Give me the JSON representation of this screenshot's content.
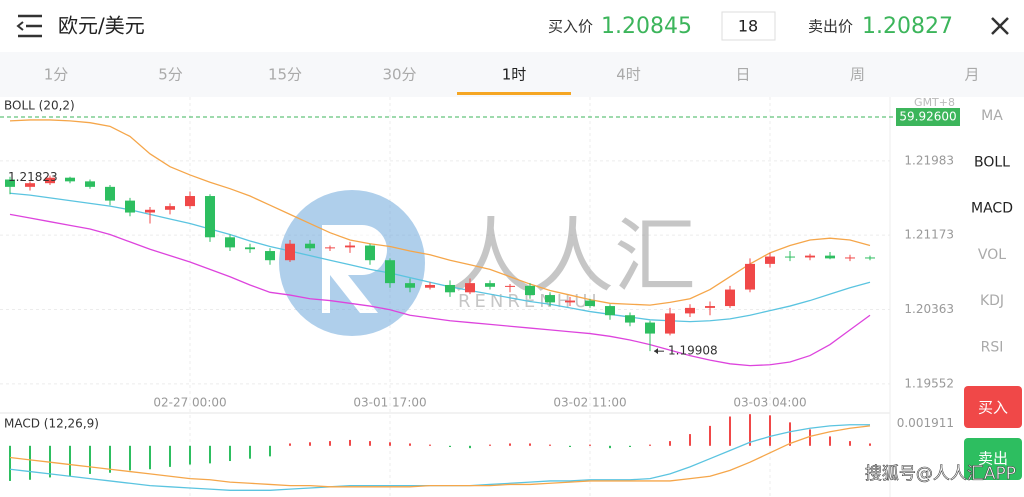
{
  "header": {
    "title": "欧元/美元",
    "buy_label": "买入价",
    "buy_price": 1.20845,
    "quantity": 18,
    "sell_label": "卖出价",
    "sell_price": 1.20827
  },
  "tabs": [
    "1分",
    "5分",
    "15分",
    "30分",
    "1时",
    "4时",
    "日",
    "周",
    "月"
  ],
  "active_tab": 4,
  "indicators": [
    "MA",
    "BOLL",
    "MACD",
    "VOL",
    "KDJ",
    "RSI"
  ],
  "active_indicators": [
    "BOLL",
    "MACD"
  ],
  "buttons": {
    "buy": "买入",
    "sell": "卖出"
  },
  "watermark": {
    "name": "人人汇",
    "latin": "RENRENHUI",
    "source": "搜狐号@人人汇APP"
  },
  "chart_data": [
    {
      "type": "candlestick",
      "title": "BOLL (20,2)",
      "price_tag": "59.92600",
      "timezone": "GMT+8",
      "categories": [
        null,
        null,
        null,
        null,
        null,
        null,
        null,
        null,
        null,
        "02-27 00:00",
        null,
        null,
        null,
        null,
        null,
        null,
        null,
        null,
        null,
        "03-01 17:00",
        null,
        null,
        null,
        null,
        null,
        null,
        null,
        null,
        null,
        "03-02 11:00",
        null,
        null,
        null,
        null,
        null,
        null,
        null,
        null,
        "03-03 04:00",
        null,
        null,
        null,
        null,
        null
      ],
      "open": [
        1.2178,
        1.217,
        1.2174,
        1.218,
        1.2176,
        1.217,
        1.2155,
        1.2142,
        1.2145,
        1.2149,
        1.216,
        1.2115,
        1.2104,
        1.21,
        1.209,
        1.2108,
        1.2103,
        1.2104,
        1.2106,
        1.209,
        1.2065,
        1.206,
        1.2063,
        1.2055,
        1.2065,
        1.2061,
        1.2062,
        1.2052,
        1.2044,
        1.2046,
        1.204,
        1.203,
        1.2022,
        1.201,
        1.2032,
        1.2038,
        1.204,
        1.2058,
        1.2086,
        1.2094,
        1.2093,
        1.2095,
        1.2092,
        1.2093
      ],
      "high": [
        1.2181,
        1.2176,
        1.21823,
        1.2181,
        1.2178,
        1.2172,
        1.2158,
        1.2148,
        1.2152,
        1.2165,
        1.2162,
        1.2118,
        1.2108,
        1.2103,
        1.2112,
        1.2112,
        1.2106,
        1.211,
        1.2108,
        1.2092,
        1.207,
        1.2066,
        1.2068,
        1.207,
        1.2068,
        1.2064,
        1.2065,
        1.2055,
        1.205,
        1.2048,
        1.2042,
        1.2033,
        1.2024,
        1.2038,
        1.2042,
        1.2045,
        1.2062,
        1.2092,
        1.2098,
        1.21,
        1.2097,
        1.2099,
        1.2096,
        1.2095
      ],
      "low": [
        1.2162,
        1.2166,
        1.2172,
        1.2174,
        1.2168,
        1.215,
        1.2138,
        1.213,
        1.214,
        1.2146,
        1.211,
        1.21,
        1.2098,
        1.2085,
        1.2088,
        1.21,
        1.21,
        1.2098,
        1.2085,
        1.206,
        1.2055,
        1.2058,
        1.205,
        1.2053,
        1.2058,
        1.2055,
        1.2048,
        1.204,
        1.204,
        1.2038,
        1.2025,
        1.2018,
        1.19908,
        1.2008,
        1.2028,
        1.203,
        1.2038,
        1.2055,
        1.2082,
        1.2089,
        1.209,
        1.2091,
        1.2089,
        1.209
      ],
      "close": [
        1.217,
        1.2174,
        1.218,
        1.2176,
        1.217,
        1.2155,
        1.2142,
        1.2145,
        1.2149,
        1.216,
        1.2115,
        1.2104,
        1.2102,
        1.209,
        1.2108,
        1.2103,
        1.2104,
        1.2106,
        1.209,
        1.2065,
        1.206,
        1.2063,
        1.2055,
        1.2065,
        1.2061,
        1.2062,
        1.2052,
        1.2044,
        1.2046,
        1.204,
        1.203,
        1.2022,
        1.201,
        1.2032,
        1.2038,
        1.204,
        1.2058,
        1.2086,
        1.2094,
        1.2093,
        1.2095,
        1.2092,
        1.2093,
        1.2092
      ],
      "upper": [
        1.2242,
        1.2243,
        1.2243,
        1.2242,
        1.224,
        1.2236,
        1.2225,
        1.2206,
        1.2192,
        1.2183,
        1.2175,
        1.2168,
        1.216,
        1.215,
        1.214,
        1.213,
        1.212,
        1.2112,
        1.2108,
        1.2105,
        1.21,
        1.2096,
        1.209,
        1.2085,
        1.208,
        1.2072,
        1.2064,
        1.2057,
        1.2052,
        1.2047,
        1.2043,
        1.2042,
        1.2041,
        1.2044,
        1.2048,
        1.2058,
        1.2072,
        1.2086,
        1.2098,
        1.2106,
        1.2112,
        1.2114,
        1.2112,
        1.2106
      ],
      "mid": [
        1.2163,
        1.2161,
        1.2158,
        1.2155,
        1.2152,
        1.2149,
        1.2145,
        1.214,
        1.2135,
        1.213,
        1.2124,
        1.2118,
        1.2111,
        1.2105,
        1.21,
        1.2095,
        1.209,
        1.2085,
        1.208,
        1.2076,
        1.2071,
        1.2066,
        1.2061,
        1.2057,
        1.2053,
        1.2049,
        1.2045,
        1.2042,
        1.2038,
        1.2034,
        1.2031,
        1.2028,
        1.2025,
        1.2024,
        1.2023,
        1.2024,
        1.2026,
        1.203,
        1.2035,
        1.204,
        1.2046,
        1.2053,
        1.206,
        1.2066
      ],
      "lower": [
        1.214,
        1.2136,
        1.2132,
        1.2128,
        1.2124,
        1.2118,
        1.211,
        1.2102,
        1.2095,
        1.2088,
        1.208,
        1.2072,
        1.2063,
        1.2055,
        1.2052,
        1.2048,
        1.2046,
        1.2043,
        1.204,
        1.2036,
        1.203,
        1.2027,
        1.2024,
        1.2022,
        1.202,
        1.2018,
        1.2016,
        1.2014,
        1.2012,
        1.201,
        1.2007,
        1.2003,
        1.1998,
        1.1992,
        1.1986,
        1.1981,
        1.1977,
        1.1975,
        1.1976,
        1.1979,
        1.1986,
        1.1998,
        1.2014,
        1.203
      ],
      "colors": {
        "up": "#f04848",
        "down": "#2dbe60",
        "upper": "#f5a64a",
        "mid": "#5bc4e0",
        "lower": "#dd44dd"
      },
      "ylim": [
        1.1943,
        1.2268
      ],
      "yticks": [
        1.21983,
        1.21173,
        1.20363,
        1.19552
      ],
      "grid": true
    },
    {
      "type": "macd",
      "title": "MACD (12,26,9)",
      "values": [
        -0.003,
        -0.0029,
        -0.0027,
        -0.0026,
        -0.0024,
        -0.0023,
        -0.0021,
        -0.002,
        -0.0018,
        -0.0016,
        -0.0015,
        -0.0013,
        -0.0011,
        -0.0009,
        0.0002,
        0.0003,
        0.0004,
        0.0005,
        0.0004,
        0.0003,
        0.0002,
        0.0001,
        -0.0001,
        -0.0002,
        0.0001,
        0.0002,
        0.0002,
        0.0001,
        -0.0001,
        0.0001,
        -0.0002,
        -0.0001,
        0.0001,
        0.0004,
        0.001,
        0.0017,
        0.0025,
        0.0027,
        0.0026,
        0.002,
        0.0014,
        0.0008,
        0.0004,
        0.0002
      ],
      "dif": [
        -0.002,
        -0.0022,
        -0.0024,
        -0.0026,
        -0.0028,
        -0.003,
        -0.0032,
        -0.0034,
        -0.0035,
        -0.0036,
        -0.0037,
        -0.0038,
        -0.0038,
        -0.0038,
        -0.0037,
        -0.0036,
        -0.0035,
        -0.0034,
        -0.0034,
        -0.0034,
        -0.0034,
        -0.0034,
        -0.0034,
        -0.0034,
        -0.0033,
        -0.0032,
        -0.0031,
        -0.003,
        -0.003,
        -0.0029,
        -0.0029,
        -0.0029,
        -0.0028,
        -0.0024,
        -0.0018,
        -0.0011,
        -0.0004,
        0.0003,
        0.0008,
        0.0012,
        0.0015,
        0.0017,
        0.0018,
        0.0018
      ],
      "dea": [
        -0.001,
        -0.0012,
        -0.0014,
        -0.0016,
        -0.0018,
        -0.002,
        -0.0022,
        -0.0024,
        -0.0026,
        -0.0028,
        -0.0029,
        -0.0031,
        -0.0032,
        -0.0033,
        -0.0034,
        -0.0034,
        -0.0035,
        -0.0035,
        -0.0035,
        -0.0035,
        -0.0035,
        -0.0034,
        -0.0034,
        -0.0034,
        -0.0034,
        -0.0033,
        -0.0033,
        -0.0032,
        -0.0031,
        -0.003,
        -0.003,
        -0.003,
        -0.003,
        -0.003,
        -0.0028,
        -0.0026,
        -0.0021,
        -0.0014,
        -0.0006,
        0.0002,
        0.0008,
        0.0012,
        0.0015,
        0.0017
      ],
      "colors": {
        "up": "#f04848",
        "down": "#2dbe60",
        "dif": "#5bc4e0",
        "dea": "#f5a64a"
      },
      "ylim": [
        -0.0042,
        0.0028
      ],
      "yticks": [
        0.001911
      ]
    }
  ]
}
